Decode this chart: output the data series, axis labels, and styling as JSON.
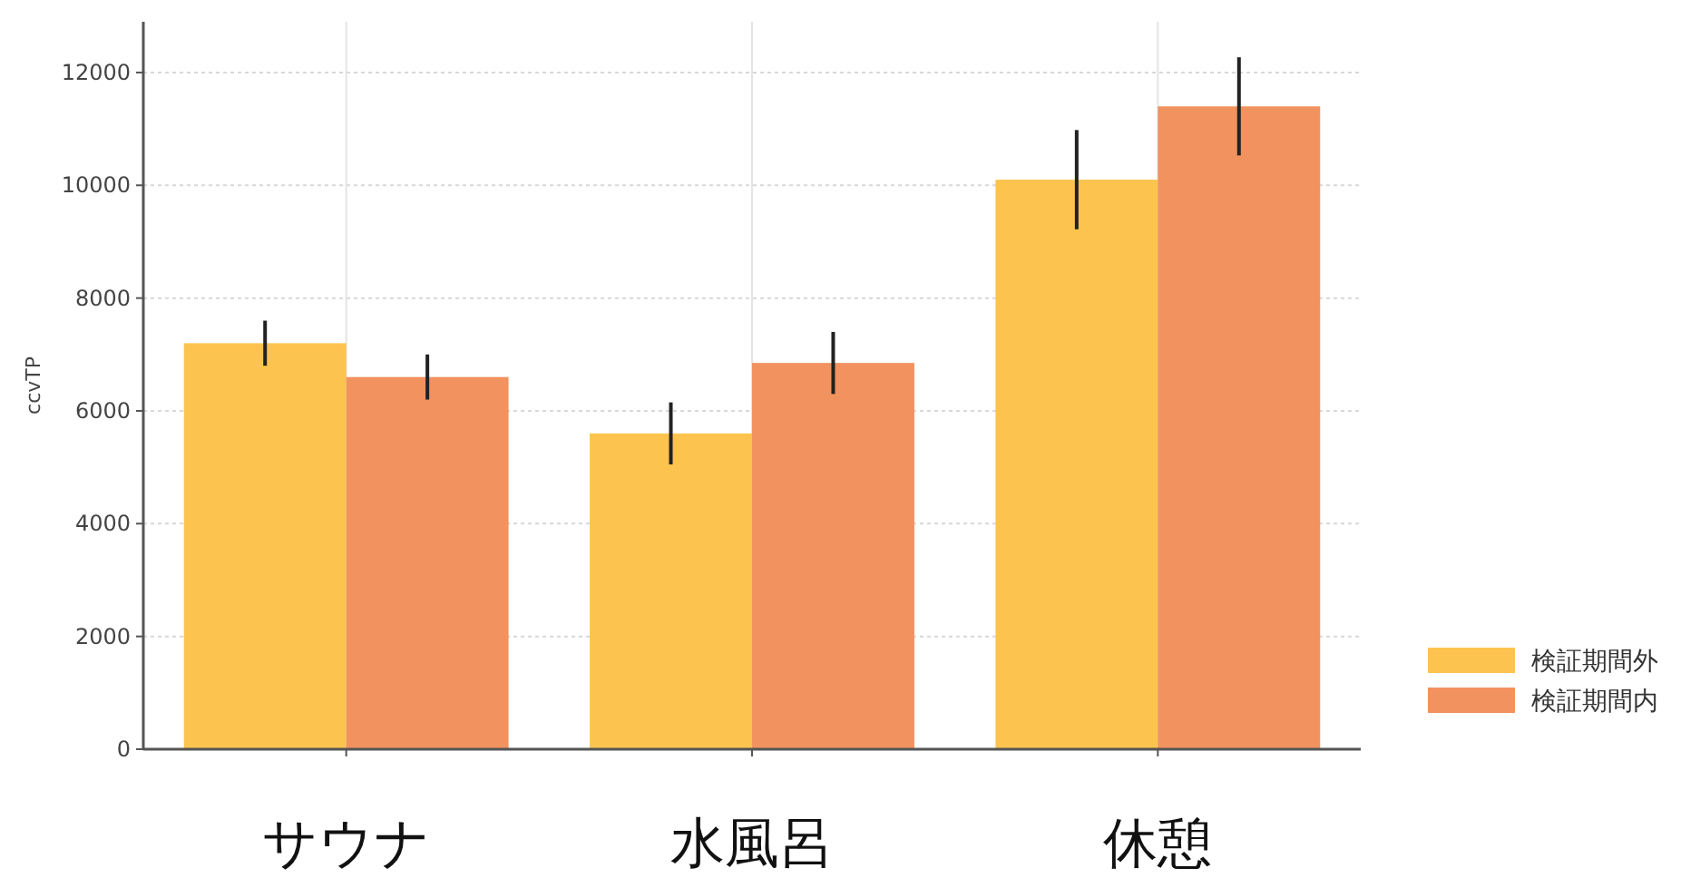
{
  "chart_data": {
    "type": "bar",
    "ylabel": "ccvTP",
    "categories": [
      "サウナ",
      "水風呂",
      "休憩"
    ],
    "series": [
      {
        "name": "検証期間外",
        "color": "#fcc44f",
        "values": [
          7200,
          5600,
          10100
        ],
        "errors": [
          400,
          550,
          880
        ]
      },
      {
        "name": "検証期間内",
        "color": "#f2925f",
        "values": [
          6600,
          6850,
          11400
        ],
        "errors": [
          400,
          550,
          870
        ]
      }
    ],
    "ylim": [
      0,
      12900
    ],
    "yticks": [
      0,
      2000,
      4000,
      6000,
      8000,
      10000,
      12000
    ],
    "grid": true,
    "legend": "bottom right"
  }
}
